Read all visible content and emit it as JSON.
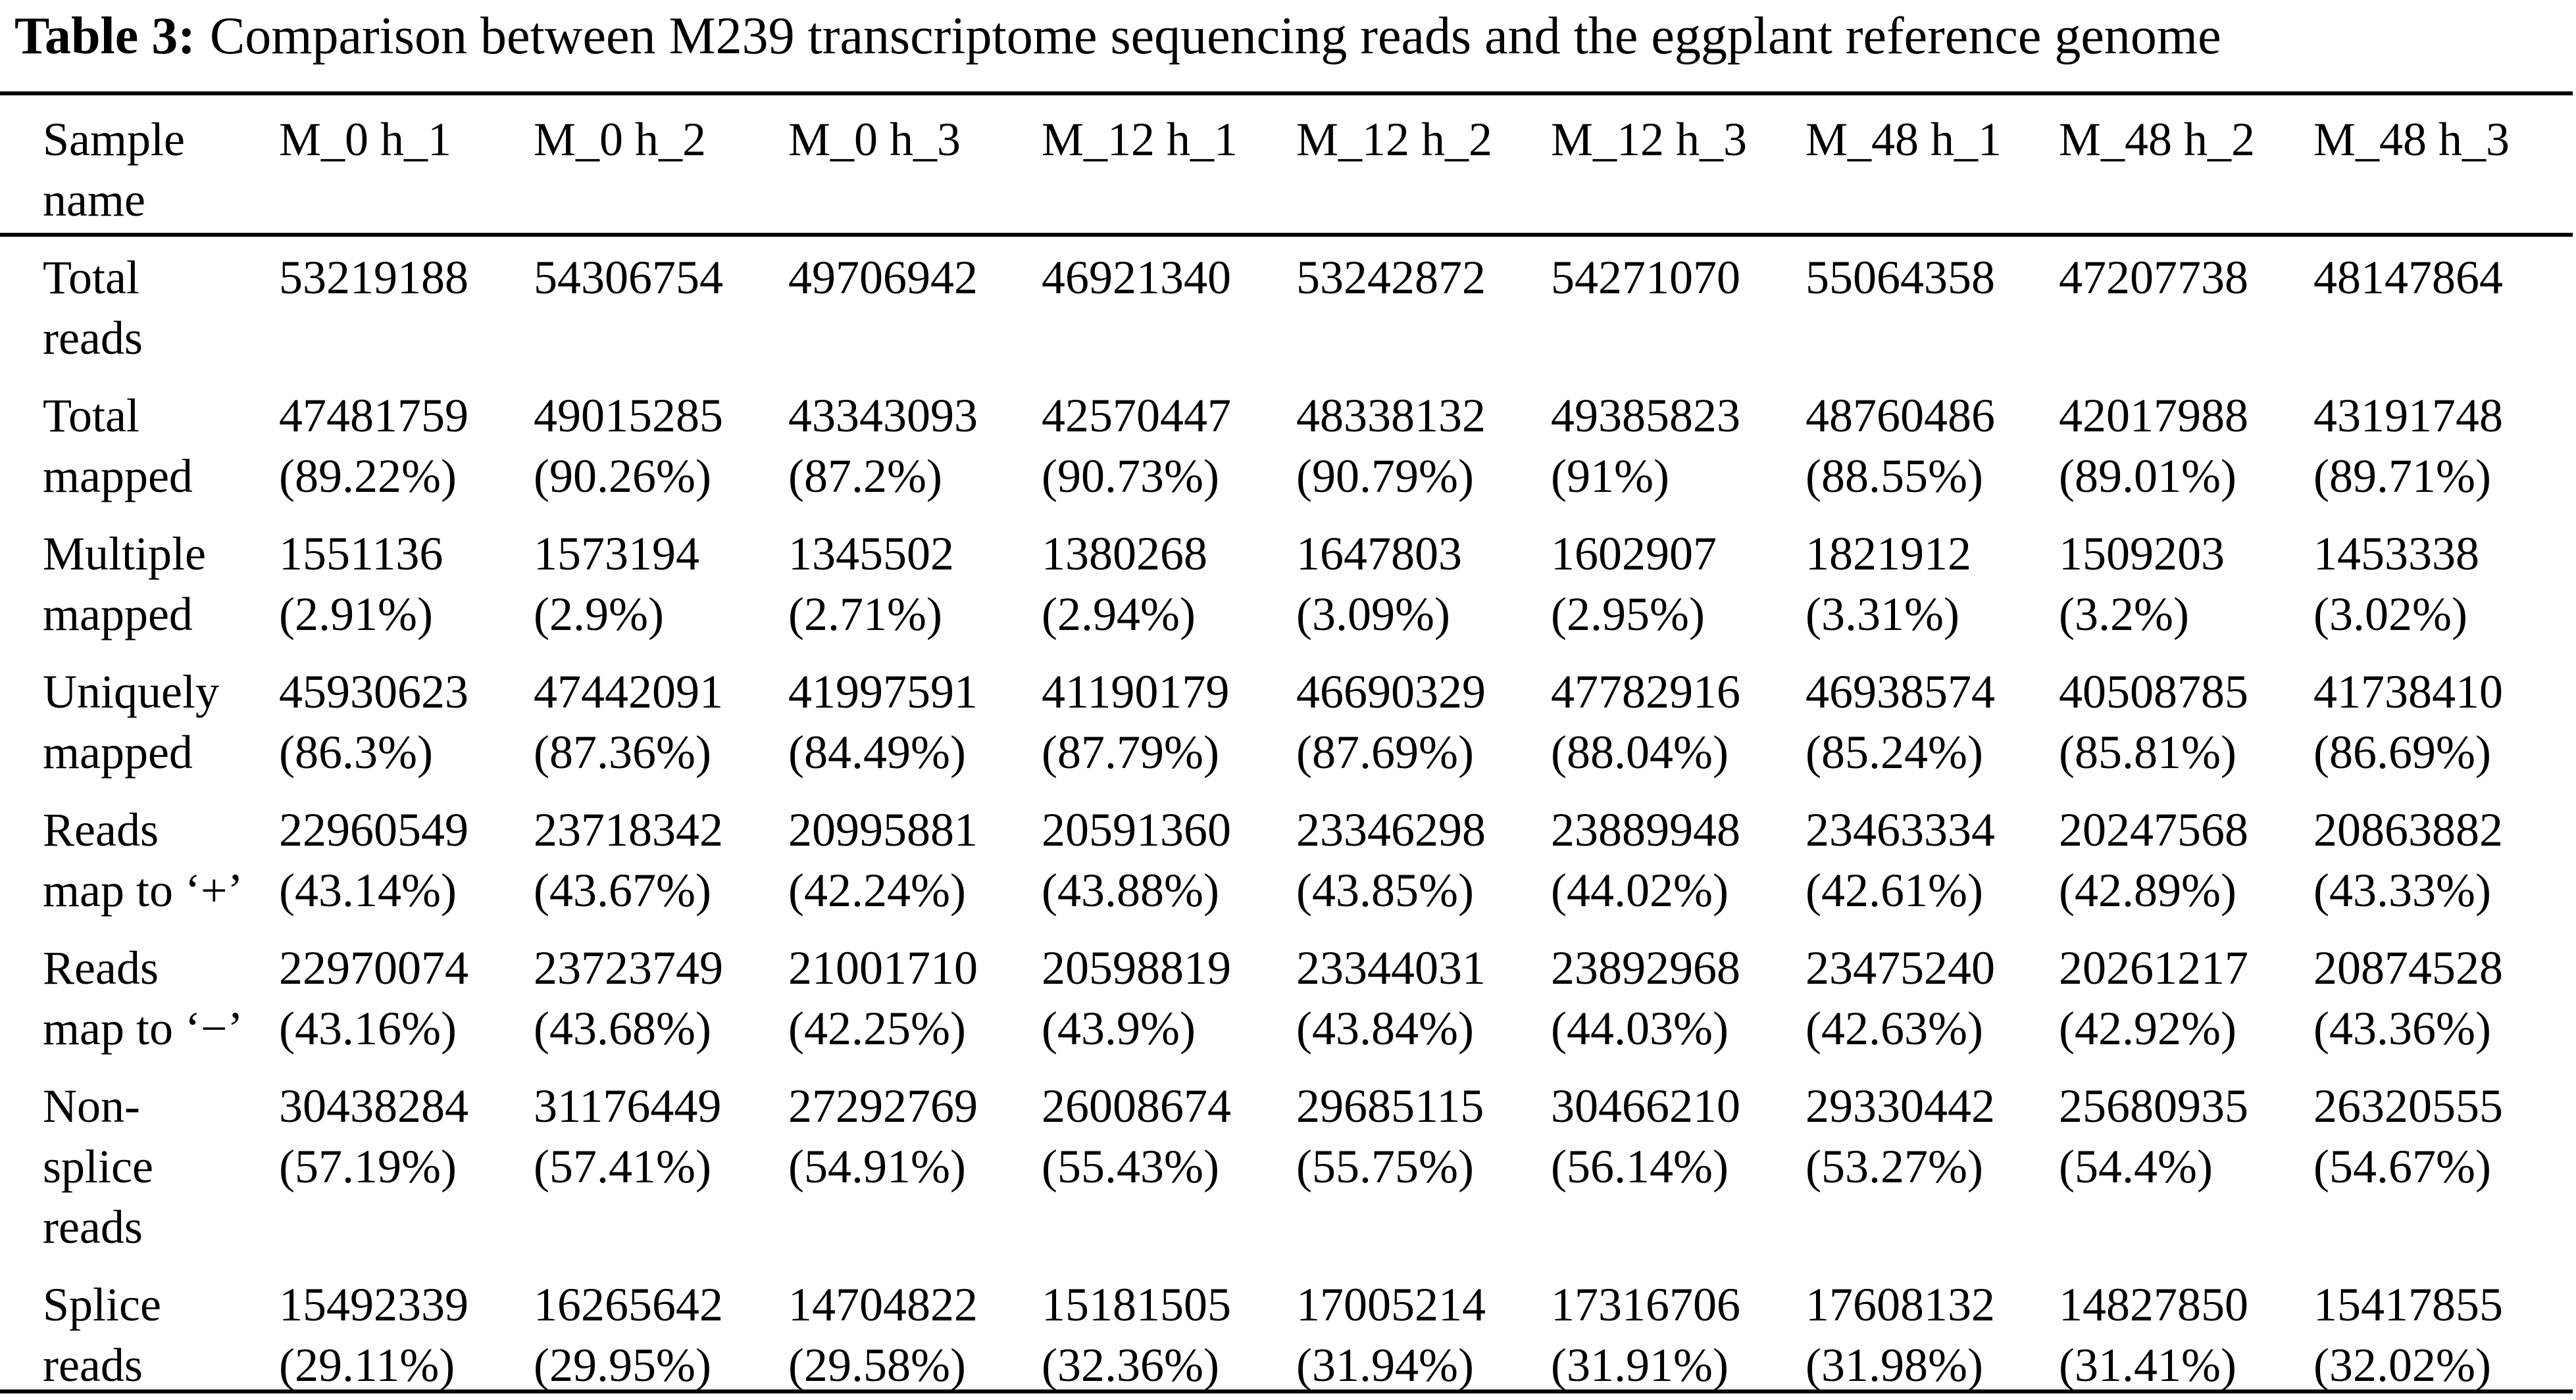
{
  "title": {
    "label": "Table 3:",
    "text": "Comparison between M239 transcriptome sequencing reads and the eggplant reference genome"
  },
  "table": {
    "header": [
      [
        "Sample",
        "name"
      ],
      [
        "M_0 h_1"
      ],
      [
        "M_0 h_2"
      ],
      [
        "M_0 h_3"
      ],
      [
        "M_12 h_1"
      ],
      [
        "M_12 h_2"
      ],
      [
        "M_12 h_3"
      ],
      [
        "M_48 h_1"
      ],
      [
        "M_48 h_2"
      ],
      [
        "M_48 h_3"
      ]
    ],
    "rows": [
      [
        [
          "Total",
          "reads"
        ],
        [
          "53219188"
        ],
        [
          "54306754"
        ],
        [
          "49706942"
        ],
        [
          "46921340"
        ],
        [
          "53242872"
        ],
        [
          "54271070"
        ],
        [
          "55064358"
        ],
        [
          "47207738"
        ],
        [
          "48147864"
        ]
      ],
      [
        [
          "Total",
          "mapped"
        ],
        [
          "47481759",
          "(89.22%)"
        ],
        [
          "49015285",
          "(90.26%)"
        ],
        [
          "43343093",
          "(87.2%)"
        ],
        [
          "42570447",
          "(90.73%)"
        ],
        [
          "48338132",
          "(90.79%)"
        ],
        [
          "49385823",
          "(91%)"
        ],
        [
          "48760486",
          "(88.55%)"
        ],
        [
          "42017988",
          "(89.01%)"
        ],
        [
          "43191748",
          "(89.71%)"
        ]
      ],
      [
        [
          "Multiple",
          "mapped"
        ],
        [
          "1551136",
          "(2.91%)"
        ],
        [
          "1573194",
          "(2.9%)"
        ],
        [
          "1345502",
          "(2.71%)"
        ],
        [
          "1380268",
          "(2.94%)"
        ],
        [
          "1647803",
          "(3.09%)"
        ],
        [
          "1602907",
          "(2.95%)"
        ],
        [
          "1821912",
          "(3.31%)"
        ],
        [
          "1509203",
          "(3.2%)"
        ],
        [
          "1453338",
          "(3.02%)"
        ]
      ],
      [
        [
          "Uniquely",
          "mapped"
        ],
        [
          "45930623",
          "(86.3%)"
        ],
        [
          "47442091",
          "(87.36%)"
        ],
        [
          "41997591",
          "(84.49%)"
        ],
        [
          "41190179",
          "(87.79%)"
        ],
        [
          "46690329",
          "(87.69%)"
        ],
        [
          "47782916",
          "(88.04%)"
        ],
        [
          "46938574",
          "(85.24%)"
        ],
        [
          "40508785",
          "(85.81%)"
        ],
        [
          "41738410",
          "(86.69%)"
        ]
      ],
      [
        [
          "Reads",
          "map to ‘+’"
        ],
        [
          "22960549",
          "(43.14%)"
        ],
        [
          "23718342",
          "(43.67%)"
        ],
        [
          "20995881",
          "(42.24%)"
        ],
        [
          "20591360",
          "(43.88%)"
        ],
        [
          "23346298",
          "(43.85%)"
        ],
        [
          "23889948",
          "(44.02%)"
        ],
        [
          "23463334",
          "(42.61%)"
        ],
        [
          "20247568",
          "(42.89%)"
        ],
        [
          "20863882",
          "(43.33%)"
        ]
      ],
      [
        [
          "Reads",
          "map to ‘−’"
        ],
        [
          "22970074",
          "(43.16%)"
        ],
        [
          "23723749",
          "(43.68%)"
        ],
        [
          "21001710",
          "(42.25%)"
        ],
        [
          "20598819",
          "(43.9%)"
        ],
        [
          "23344031",
          "(43.84%)"
        ],
        [
          "23892968",
          "(44.03%)"
        ],
        [
          "23475240",
          "(42.63%)"
        ],
        [
          "20261217",
          "(42.92%)"
        ],
        [
          "20874528",
          "(43.36%)"
        ]
      ],
      [
        [
          "Non-",
          "splice",
          "reads"
        ],
        [
          "30438284",
          "(57.19%)"
        ],
        [
          "31176449",
          "(57.41%)"
        ],
        [
          "27292769",
          "(54.91%)"
        ],
        [
          "26008674",
          "(55.43%)"
        ],
        [
          "29685115",
          "(55.75%)"
        ],
        [
          "30466210",
          "(56.14%)"
        ],
        [
          "29330442",
          "(53.27%)"
        ],
        [
          "25680935",
          "(54.4%)"
        ],
        [
          "26320555",
          "(54.67%)"
        ]
      ],
      [
        [
          "Splice",
          "reads"
        ],
        [
          "15492339",
          "(29.11%)"
        ],
        [
          "16265642",
          "(29.95%)"
        ],
        [
          "14704822",
          "(29.58%)"
        ],
        [
          "15181505",
          "(32.36%)"
        ],
        [
          "17005214",
          "(31.94%)"
        ],
        [
          "17316706",
          "(31.91%)"
        ],
        [
          "17608132",
          "(31.98%)"
        ],
        [
          "14827850",
          "(31.41%)"
        ],
        [
          "15417855",
          "(32.02%)"
        ]
      ]
    ]
  }
}
